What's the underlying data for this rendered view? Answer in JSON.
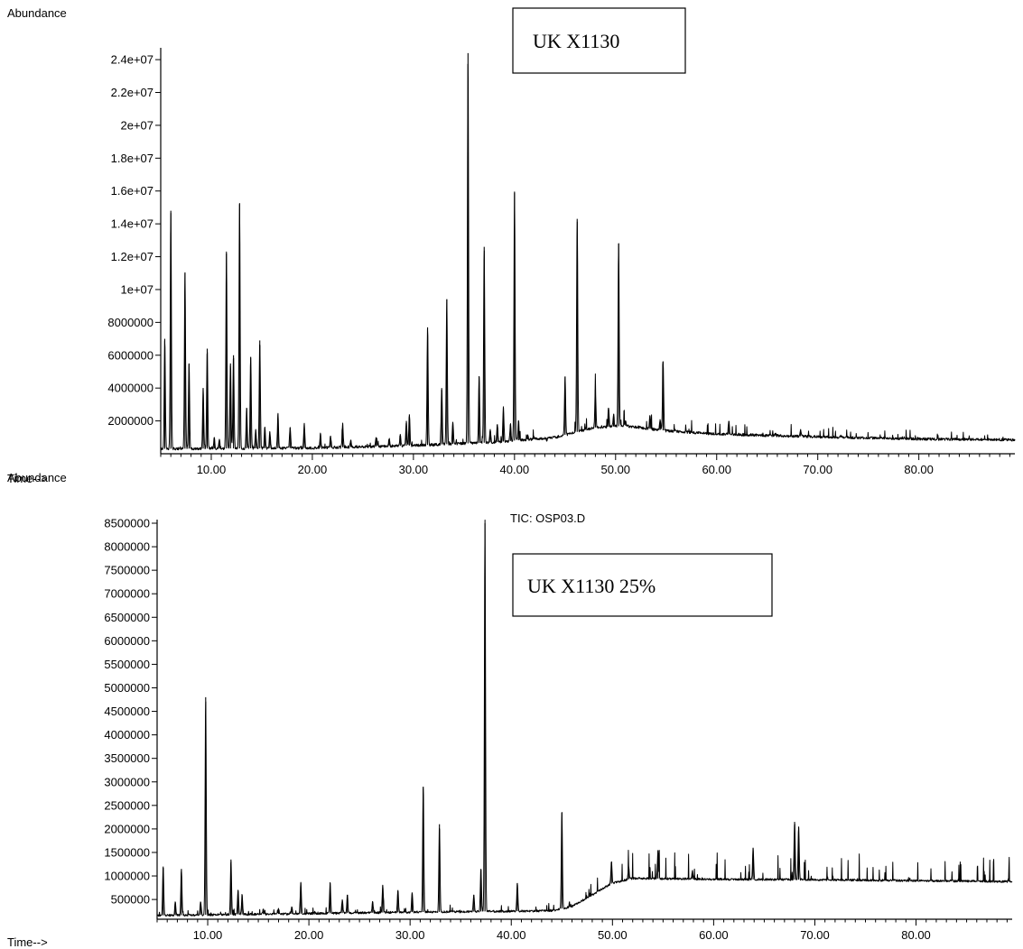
{
  "chart_data": [
    {
      "type": "line",
      "title": "",
      "ylabel": "Abundance",
      "xlabel": "Time-->",
      "annotation": "UK X1130",
      "xlim": [
        5,
        89.5
      ],
      "ylim": [
        0,
        24500000
      ],
      "xticks": [
        10,
        20,
        30,
        40,
        50,
        60,
        70,
        80
      ],
      "xtick_labels": [
        "10.00",
        "20.00",
        "30.00",
        "40.00",
        "50.00",
        "60.00",
        "70.00",
        "80.00"
      ],
      "yticks": [
        2000000,
        4000000,
        6000000,
        8000000,
        10000000,
        12000000,
        14000000,
        16000000,
        18000000,
        20000000,
        22000000,
        24000000
      ],
      "ytick_labels": [
        "2000000",
        "4000000",
        "6000000",
        "8000000",
        "1e+07",
        "1.2e+07",
        "1.4e+07",
        "1.6e+07",
        "1.8e+07",
        "2e+07",
        "2.2e+07",
        "2.4e+07"
      ],
      "baseline": [
        [
          5,
          300000
        ],
        [
          20,
          350000
        ],
        [
          30,
          500000
        ],
        [
          38,
          700000
        ],
        [
          44,
          1000000
        ],
        [
          48,
          1600000
        ],
        [
          51,
          1700000
        ],
        [
          55,
          1400000
        ],
        [
          60,
          1200000
        ],
        [
          66,
          1100000
        ],
        [
          72,
          1000000
        ],
        [
          80,
          900000
        ],
        [
          89.5,
          850000
        ]
      ],
      "peaks": [
        [
          5.4,
          7000000
        ],
        [
          6.0,
          14800000
        ],
        [
          7.4,
          11000000
        ],
        [
          7.8,
          5500000
        ],
        [
          9.2,
          4000000
        ],
        [
          9.6,
          6400000
        ],
        [
          10.3,
          1000000
        ],
        [
          10.8,
          900000
        ],
        [
          11.5,
          12200000
        ],
        [
          11.9,
          5500000
        ],
        [
          12.2,
          6000000
        ],
        [
          12.8,
          15200000
        ],
        [
          13.5,
          2800000
        ],
        [
          13.9,
          5900000
        ],
        [
          14.4,
          1500000
        ],
        [
          14.8,
          6900000
        ],
        [
          15.3,
          1600000
        ],
        [
          15.8,
          1300000
        ],
        [
          16.6,
          2400000
        ],
        [
          17.8,
          1600000
        ],
        [
          19.2,
          1800000
        ],
        [
          20.8,
          1200000
        ],
        [
          21.8,
          1100000
        ],
        [
          23.0,
          1800000
        ],
        [
          23.8,
          800000
        ],
        [
          26.3,
          1000000
        ],
        [
          27.6,
          900000
        ],
        [
          28.7,
          1200000
        ],
        [
          29.3,
          2000000
        ],
        [
          29.6,
          2400000
        ],
        [
          31.4,
          7700000
        ],
        [
          32.8,
          4000000
        ],
        [
          33.3,
          9400000
        ],
        [
          33.9,
          1900000
        ],
        [
          35.4,
          24400000
        ],
        [
          36.5,
          4700000
        ],
        [
          37.0,
          12600000
        ],
        [
          37.6,
          1500000
        ],
        [
          38.3,
          1800000
        ],
        [
          38.9,
          2800000
        ],
        [
          39.6,
          1800000
        ],
        [
          40.0,
          15900000
        ],
        [
          40.4,
          2000000
        ],
        [
          41.3,
          1100000
        ],
        [
          43.2,
          800000
        ],
        [
          45.0,
          4700000
        ],
        [
          46.2,
          14300000
        ],
        [
          47.0,
          1600000
        ],
        [
          48.0,
          3900000
        ],
        [
          49.3,
          2800000
        ],
        [
          49.8,
          2400000
        ],
        [
          50.3,
          12800000
        ],
        [
          51.0,
          2000000
        ],
        [
          53.4,
          2300000
        ],
        [
          54.4,
          2100000
        ],
        [
          54.7,
          5600000
        ],
        [
          61.2,
          2000000
        ],
        [
          65.8,
          1200000
        ],
        [
          68.3,
          1500000
        ],
        [
          72.3,
          1100000
        ]
      ]
    },
    {
      "type": "line",
      "title": "TIC: OSP03.D",
      "ylabel": "Abundance",
      "xlabel": "Time-->",
      "annotation": "UK X1130 25%",
      "xlim": [
        5,
        89.5
      ],
      "ylim": [
        80000,
        8500000
      ],
      "xticks": [
        10,
        20,
        30,
        40,
        50,
        60,
        70,
        80
      ],
      "xtick_labels": [
        "10.00",
        "20.00",
        "30.00",
        "40.00",
        "50.00",
        "60.00",
        "70.00",
        "80.00"
      ],
      "yticks": [
        500000,
        1000000,
        1500000,
        2000000,
        2500000,
        3000000,
        3500000,
        4000000,
        4500000,
        5000000,
        5500000,
        6000000,
        6500000,
        7000000,
        7500000,
        8000000,
        8500000
      ],
      "ytick_labels": [
        "500000",
        "1000000",
        "1500000",
        "2000000",
        "2500000",
        "3000000",
        "3500000",
        "4000000",
        "4500000",
        "5000000",
        "5500000",
        "6000000",
        "6500000",
        "7000000",
        "7500000",
        "8000000",
        "8500000"
      ],
      "baseline": [
        [
          5,
          160000
        ],
        [
          20,
          200000
        ],
        [
          30,
          230000
        ],
        [
          40,
          250000
        ],
        [
          44,
          260000
        ],
        [
          46,
          350000
        ],
        [
          48,
          600000
        ],
        [
          50,
          850000
        ],
        [
          52,
          950000
        ],
        [
          60,
          930000
        ],
        [
          70,
          920000
        ],
        [
          80,
          900000
        ],
        [
          89.5,
          880000
        ]
      ],
      "peaks": [
        [
          5.6,
          1200000
        ],
        [
          6.8,
          450000
        ],
        [
          7.4,
          1150000
        ],
        [
          9.3,
          450000
        ],
        [
          9.8,
          4800000
        ],
        [
          12.3,
          1350000
        ],
        [
          13.0,
          700000
        ],
        [
          13.4,
          600000
        ],
        [
          15.5,
          300000
        ],
        [
          17.0,
          300000
        ],
        [
          18.3,
          350000
        ],
        [
          19.2,
          850000
        ],
        [
          22.1,
          850000
        ],
        [
          23.3,
          500000
        ],
        [
          23.8,
          600000
        ],
        [
          26.3,
          450000
        ],
        [
          27.3,
          800000
        ],
        [
          28.8,
          700000
        ],
        [
          30.2,
          650000
        ],
        [
          31.3,
          2900000
        ],
        [
          32.9,
          2100000
        ],
        [
          36.3,
          600000
        ],
        [
          37.0,
          1150000
        ],
        [
          37.4,
          8500000
        ],
        [
          40.6,
          850000
        ],
        [
          45.0,
          2350000
        ],
        [
          49.9,
          1300000
        ],
        [
          51.6,
          1200000
        ],
        [
          54.5,
          1550000
        ],
        [
          57.9,
          1100000
        ],
        [
          63.9,
          1600000
        ],
        [
          68.0,
          2150000
        ],
        [
          68.4,
          2050000
        ]
      ]
    }
  ]
}
